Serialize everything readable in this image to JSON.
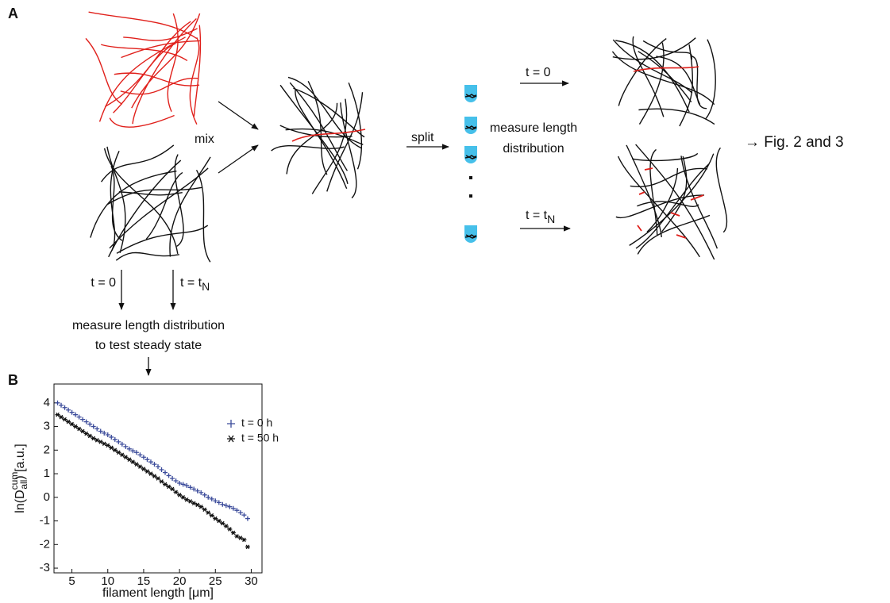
{
  "panel_a": {
    "label": "A",
    "mix": "mix",
    "split": "split",
    "measure_length_distribution": [
      "measure length",
      "distribution"
    ],
    "t0_right": "t = 0",
    "tN_right": {
      "text": "t = t",
      "subscript": "N"
    },
    "result": "→  Fig. 2 and 3",
    "t0_left": "t = 0",
    "tN_left": {
      "text": "t = t",
      "subscript": "N"
    },
    "steady_state": [
      "measure length distribution",
      "to test steady state"
    ]
  },
  "panel_b": {
    "label": "B"
  },
  "chart_data": {
    "type": "scatter",
    "x_label": "filament length [μm]",
    "y_label": {
      "prefix": "ln(D",
      "superscript": "cum",
      "subscript": "all",
      "suffix": ") [a.u.]"
    },
    "xlim": [
      2.5,
      31.5
    ],
    "ylim": [
      -3.2,
      4.8
    ],
    "xticks": [
      5,
      10,
      15,
      20,
      25,
      30
    ],
    "yticks": [
      -3,
      -2,
      -1,
      0,
      1,
      2,
      3,
      4
    ],
    "legend_position": "upper right",
    "x": [
      3,
      3.5,
      4,
      4.5,
      5,
      5.5,
      6,
      6.5,
      7,
      7.5,
      8,
      8.5,
      9,
      9.5,
      10,
      10.5,
      11,
      11.5,
      12,
      12.5,
      13,
      13.5,
      14,
      14.5,
      15,
      15.5,
      16,
      16.5,
      17,
      17.5,
      18,
      18.5,
      19,
      19.5,
      20,
      20.5,
      21,
      21.5,
      22,
      22.5,
      23,
      23.5,
      24,
      24.5,
      25,
      25.5,
      26,
      26.5,
      27,
      27.5,
      28,
      28.5,
      29,
      29.5
    ],
    "series": [
      {
        "name": "t = 0 h",
        "color": "#3a4a9a",
        "marker": "plus",
        "values": [
          4.0,
          3.9,
          3.8,
          3.7,
          3.6,
          3.5,
          3.4,
          3.3,
          3.2,
          3.1,
          3.0,
          2.9,
          2.8,
          2.72,
          2.65,
          2.55,
          2.45,
          2.35,
          2.25,
          2.15,
          2.05,
          1.97,
          1.9,
          1.8,
          1.7,
          1.6,
          1.5,
          1.4,
          1.3,
          1.17,
          1.05,
          0.92,
          0.8,
          0.7,
          0.6,
          0.55,
          0.5,
          0.42,
          0.35,
          0.27,
          0.2,
          0.1,
          0.0,
          -0.07,
          -0.15,
          -0.22,
          -0.3,
          -0.35,
          -0.4,
          -0.47,
          -0.55,
          -0.65,
          -0.75,
          -0.9
        ]
      },
      {
        "name": "t = 50 h",
        "color": "#111111",
        "marker": "star",
        "values": [
          3.5,
          3.4,
          3.3,
          3.2,
          3.1,
          3.0,
          2.9,
          2.8,
          2.7,
          2.6,
          2.5,
          2.42,
          2.35,
          2.27,
          2.2,
          2.1,
          2.0,
          1.9,
          1.8,
          1.7,
          1.6,
          1.5,
          1.4,
          1.3,
          1.2,
          1.1,
          1.0,
          0.9,
          0.8,
          0.67,
          0.55,
          0.45,
          0.35,
          0.22,
          0.1,
          0.0,
          -0.1,
          -0.17,
          -0.25,
          -0.32,
          -0.4,
          -0.52,
          -0.65,
          -0.77,
          -0.9,
          -1.0,
          -1.1,
          -1.22,
          -1.35,
          -1.5,
          -1.65,
          -1.72,
          -1.8,
          -2.1
        ]
      }
    ]
  }
}
